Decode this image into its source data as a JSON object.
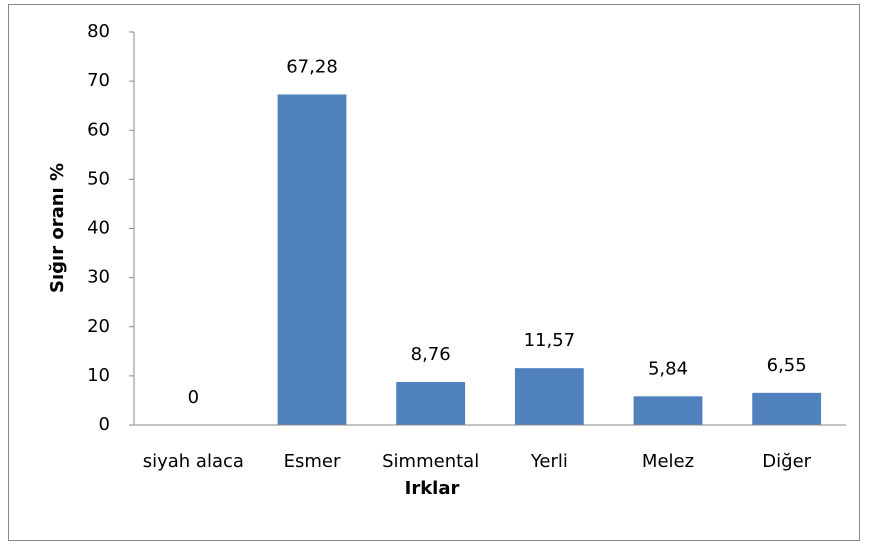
{
  "chart_data": {
    "type": "bar",
    "xlabel": "Irklar",
    "ylabel": "Sığır oranı %",
    "categories": [
      "siyah alaca",
      "Esmer",
      "Simmental",
      "Yerli",
      "Melez",
      "Diğer"
    ],
    "values": [
      0,
      67.28,
      8.76,
      11.57,
      5.84,
      6.55
    ],
    "value_labels": [
      "0",
      "67,28",
      "8,76",
      "11,57",
      "5,84",
      "6,55"
    ],
    "color": "#4f81bd",
    "ylim": [
      0,
      80
    ],
    "yticks": [
      0,
      10,
      20,
      30,
      40,
      50,
      60,
      70,
      80
    ],
    "grid": false
  }
}
